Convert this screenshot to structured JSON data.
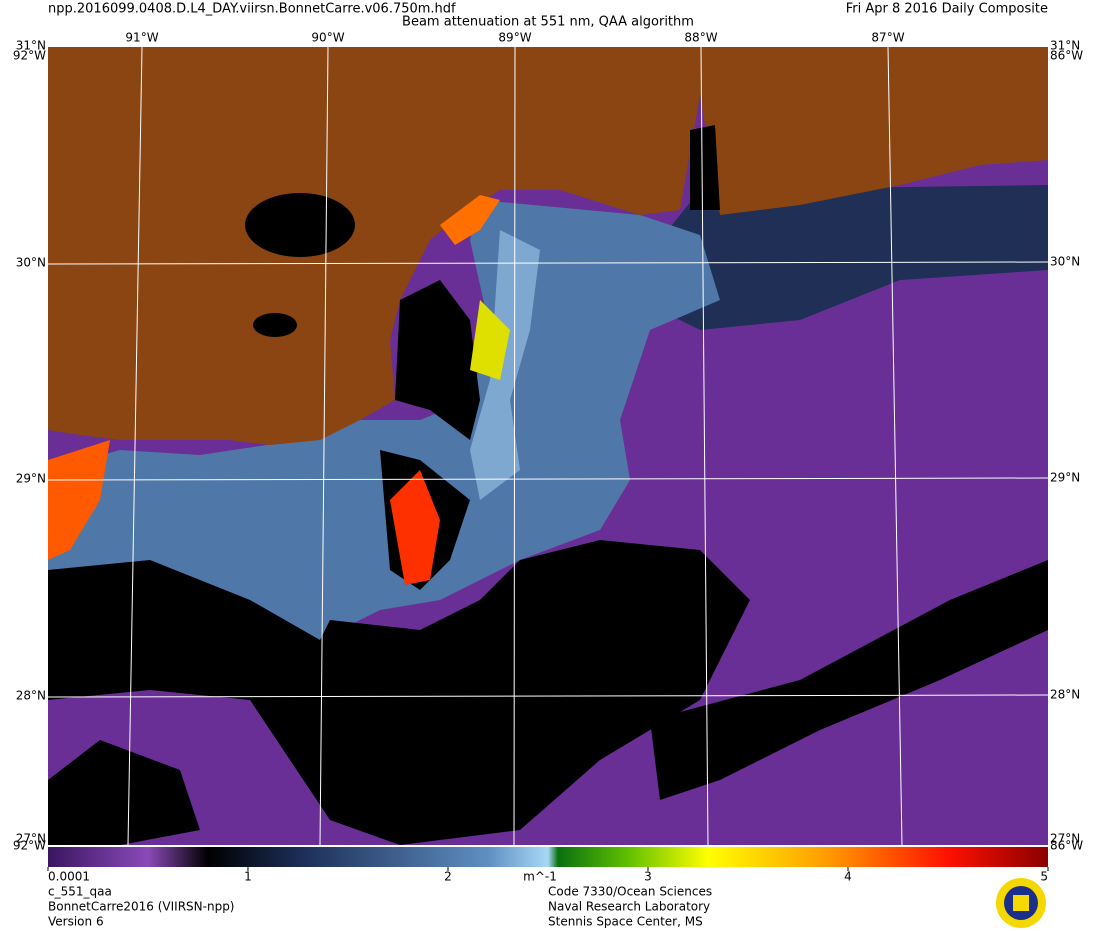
{
  "header": {
    "filename": "npp.2016099.0408.D.L4_DAY.viirsn.BonnetCarre.v06.750m.hdf",
    "title": "Beam attenuation at 551 nm, QAA algorithm",
    "date": "Fri Apr  8 2016 Daily Composite"
  },
  "map": {
    "lat_labels": [
      "31°N",
      "30°N",
      "29°N",
      "28°N",
      "27°N"
    ],
    "lon_labels": [
      "91°W",
      "90°W",
      "89°W",
      "88°W",
      "87°W"
    ],
    "corner_labels": [
      "92°W",
      "86°W"
    ]
  },
  "colorbar": {
    "ticks": [
      0.0001,
      1,
      2,
      3,
      4,
      5
    ],
    "unit": "m^-1"
  },
  "footer": {
    "left": [
      "c_551_qaa",
      "BonnetCarre2016 (VIIRSN-npp)",
      "Version 6"
    ],
    "right": [
      "Code 7330/Ocean Sciences",
      "Naval Research Laboratory",
      "Stennis Space Center, MS"
    ]
  }
}
